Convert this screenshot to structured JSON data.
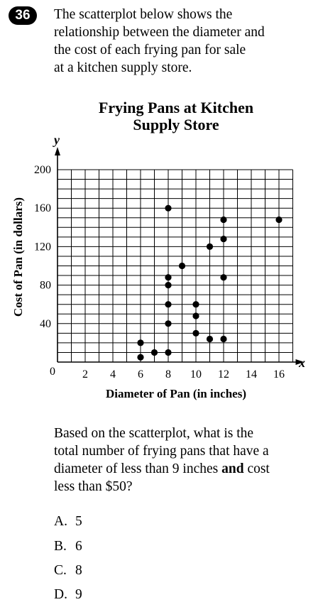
{
  "question_number": "36",
  "stem_lines": [
    "The scatterplot below shows the",
    "relationship between the diameter and",
    "the cost of each frying pan for sale",
    "at a kitchen supply store."
  ],
  "question": {
    "lines_before": [
      "Based on the scatterplot, what is the",
      "total number of frying pans that have a",
      "diameter of less than 9 inches"
    ],
    "bold_word": "and",
    "after_bold": " cost",
    "last_line": "less than $50?"
  },
  "choices": [
    {
      "letter": "A.",
      "text": "5"
    },
    {
      "letter": "B.",
      "text": "6"
    },
    {
      "letter": "C.",
      "text": "8"
    },
    {
      "letter": "D.",
      "text": "9"
    }
  ],
  "chart_data": {
    "type": "scatter",
    "title_lines": [
      "Frying Pans at Kitchen",
      "Supply Store"
    ],
    "xlabel": "Diameter of Pan (in inches)",
    "ylabel": "Cost of Pan (in dollars)",
    "x_axis_letter": "x",
    "y_axis_letter": "y",
    "origin_label": "0",
    "xlim": [
      0,
      17
    ],
    "ylim": [
      0,
      200
    ],
    "x_grid_step": 1,
    "y_grid_step": 10,
    "grid": true,
    "x_ticks": [
      2,
      4,
      6,
      8,
      10,
      12,
      14,
      16
    ],
    "y_ticks": [
      40,
      80,
      120,
      160,
      200
    ],
    "points": [
      {
        "x": 6,
        "y": 5
      },
      {
        "x": 6,
        "y": 20
      },
      {
        "x": 7,
        "y": 10
      },
      {
        "x": 8,
        "y": 10
      },
      {
        "x": 8,
        "y": 40
      },
      {
        "x": 8,
        "y": 60
      },
      {
        "x": 8,
        "y": 80
      },
      {
        "x": 8,
        "y": 88
      },
      {
        "x": 8,
        "y": 160
      },
      {
        "x": 9,
        "y": 100
      },
      {
        "x": 10,
        "y": 30
      },
      {
        "x": 10,
        "y": 48
      },
      {
        "x": 10,
        "y": 60
      },
      {
        "x": 11,
        "y": 24
      },
      {
        "x": 11,
        "y": 120
      },
      {
        "x": 12,
        "y": 24
      },
      {
        "x": 12,
        "y": 88
      },
      {
        "x": 12,
        "y": 128
      },
      {
        "x": 12,
        "y": 148
      },
      {
        "x": 16,
        "y": 148
      }
    ]
  }
}
